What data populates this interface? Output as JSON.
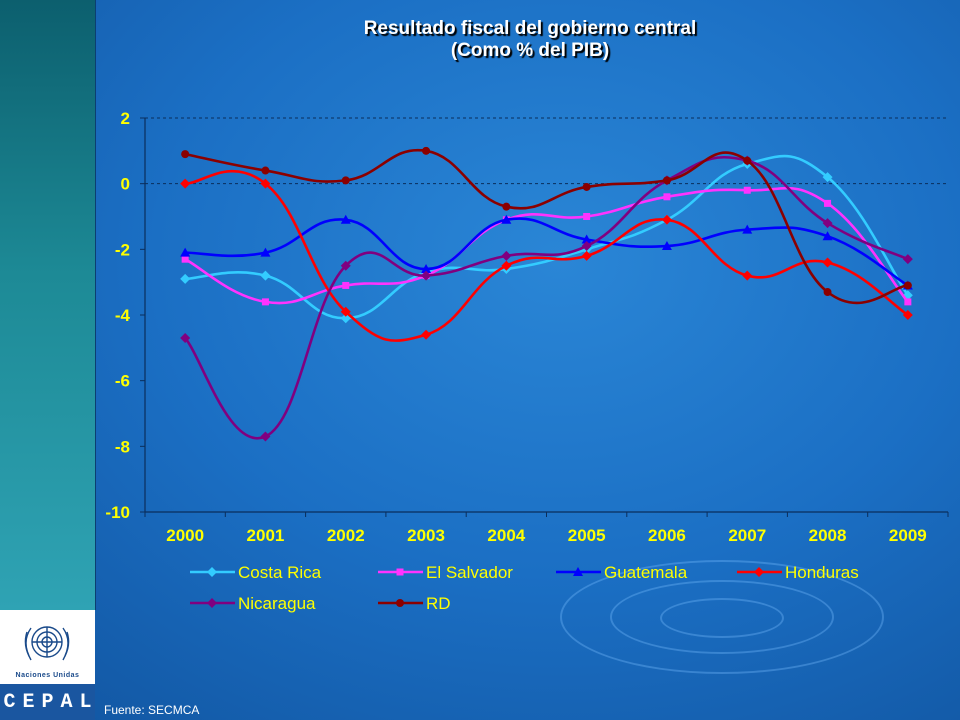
{
  "title_line1": "Resultado fiscal del gobierno central",
  "title_line2": "(Como % del PIB)",
  "source": "Fuente: SECMCA",
  "logo": {
    "un_label": "Naciones Unidas",
    "letters": [
      "C",
      "E",
      "P",
      "A",
      "L"
    ]
  },
  "chart_data": {
    "type": "line",
    "categories": [
      "2000",
      "2001",
      "2002",
      "2003",
      "2004",
      "2005",
      "2006",
      "2007",
      "2008",
      "2009"
    ],
    "ylim": [
      -10,
      2
    ],
    "yticks": [
      "2",
      "0",
      "-2",
      "-4",
      "-6",
      "-8",
      "-10"
    ],
    "grid": "y-dashed at 0 and 2",
    "legend_placement": "bottom",
    "series": [
      {
        "name": "Costa Rica",
        "color": "#33ccff",
        "marker": "diamond",
        "values": [
          -2.9,
          -2.8,
          -4.1,
          -2.7,
          -2.6,
          -2.0,
          -1.1,
          0.6,
          0.2,
          -3.4
        ]
      },
      {
        "name": "El Salvador",
        "color": "#ff33ff",
        "marker": "square",
        "values": [
          -2.3,
          -3.6,
          -3.1,
          -2.8,
          -1.1,
          -1.0,
          -0.4,
          -0.2,
          -0.6,
          -3.6
        ]
      },
      {
        "name": "Guatemala",
        "color": "#0000ff",
        "marker": "triangle",
        "values": [
          -2.1,
          -2.1,
          -1.1,
          -2.6,
          -1.1,
          -1.7,
          -1.9,
          -1.4,
          -1.6,
          -3.1
        ]
      },
      {
        "name": "Honduras",
        "color": "#ff0000",
        "marker": "diamond",
        "values": [
          0.0,
          0.0,
          -3.9,
          -4.6,
          -2.5,
          -2.2,
          -1.1,
          -2.8,
          -2.4,
          -4.0
        ]
      },
      {
        "name": "Nicaragua",
        "color": "#800080",
        "marker": "diamond",
        "values": [
          -4.7,
          -7.7,
          -2.5,
          -2.8,
          -2.2,
          -1.9,
          0.1,
          0.7,
          -1.2,
          -2.3
        ]
      },
      {
        "name": "RD",
        "color": "#8b0000",
        "marker": "circle",
        "values": [
          0.9,
          0.4,
          0.1,
          1.0,
          -0.7,
          -0.1,
          0.1,
          0.7,
          -3.3,
          -3.1
        ]
      }
    ]
  }
}
